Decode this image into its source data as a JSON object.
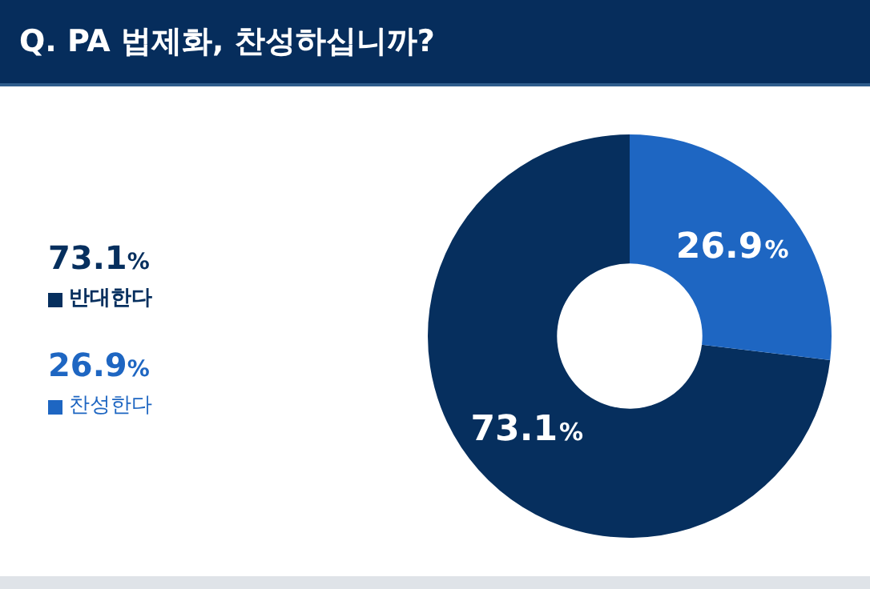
{
  "chart_data": {
    "type": "donut",
    "title": "Q. PA 법제화, 찬성하십니까?",
    "categories": [
      "반대한다",
      "찬성한다"
    ],
    "values": [
      73.1,
      26.9
    ],
    "colors": [
      "#062f5e",
      "#1e66c2"
    ],
    "value_labels": [
      "73.1%",
      "26.9%"
    ],
    "legend": "left"
  }
}
